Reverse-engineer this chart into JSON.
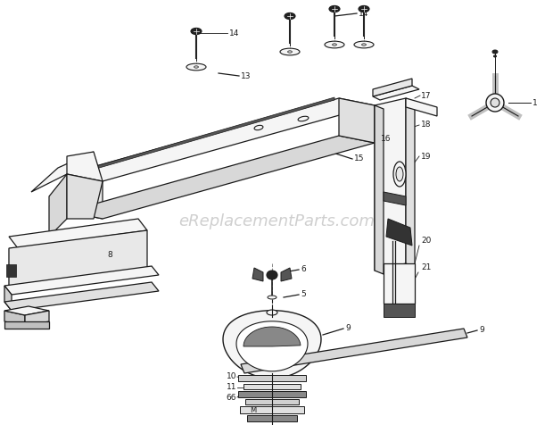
{
  "background_color": "#ffffff",
  "watermark_text": "eReplacementParts.com",
  "watermark_color": "#b0b0b0",
  "watermark_fontsize": 13,
  "line_color": "#1a1a1a",
  "line_width": 0.9,
  "label_fontsize": 6.5,
  "screw_fill": "#222222",
  "part_fill": "#f5f5f5",
  "shadow_fill": "#888888"
}
